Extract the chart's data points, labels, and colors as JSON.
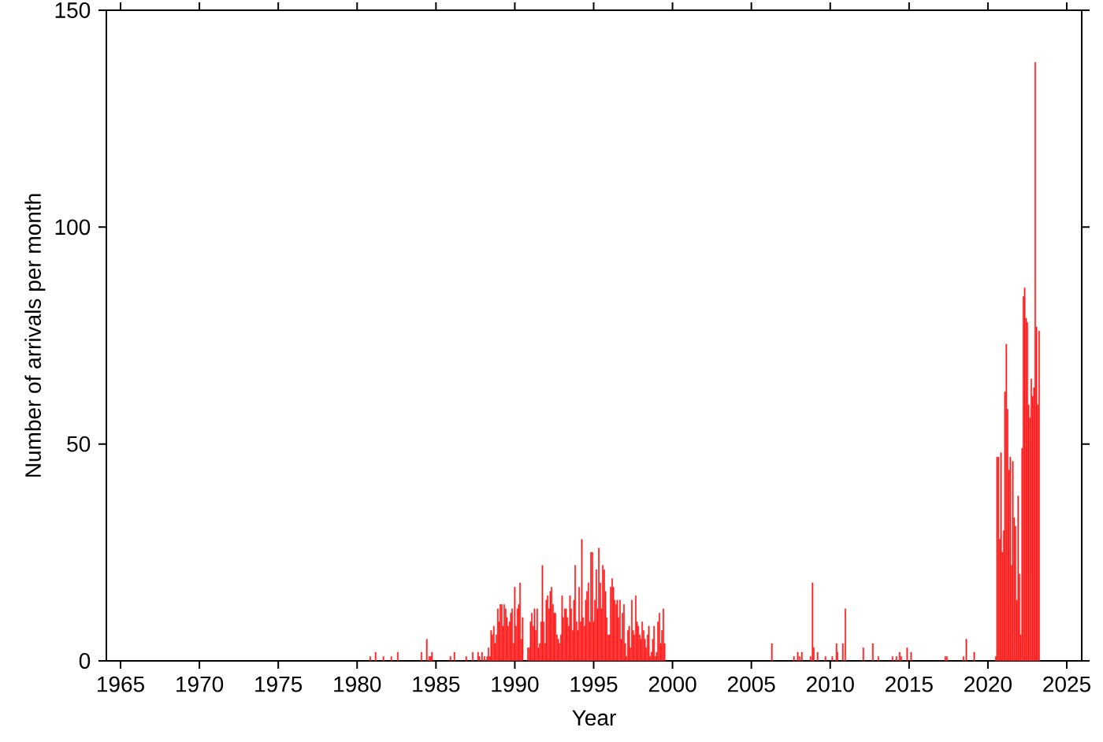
{
  "chart_data": {
    "type": "bar",
    "xlabel": "Year",
    "ylabel": "Number of arrivals per month",
    "xlim": [
      1964.1,
      2025.95
    ],
    "ylim": [
      0,
      150
    ],
    "xticks": [
      1965,
      1970,
      1975,
      1980,
      1985,
      1990,
      1995,
      2000,
      2005,
      2010,
      2015,
      2020,
      2025
    ],
    "yticks": [
      0,
      50,
      100,
      150
    ],
    "grid": false,
    "series": [
      {
        "color": "#ff1a1a",
        "x": [
          1980.83,
          1981.17,
          1981.67,
          1982.17,
          1982.58,
          1984.08,
          1984.42,
          1984.58,
          1984.67,
          1984.75,
          1985.92,
          1986.17,
          1986.92,
          1987.33,
          1987.67,
          1987.75,
          1987.92,
          1988.08,
          1988.25,
          1988.33,
          1988.42,
          1988.5,
          1988.58,
          1988.67,
          1988.75,
          1988.83,
          1988.92,
          1989.0,
          1989.08,
          1989.17,
          1989.25,
          1989.33,
          1989.42,
          1989.5,
          1989.58,
          1989.67,
          1989.75,
          1989.83,
          1989.92,
          1990.0,
          1990.08,
          1990.17,
          1990.25,
          1990.33,
          1990.42,
          1990.5,
          1990.83,
          1990.92,
          1991.0,
          1991.08,
          1991.17,
          1991.25,
          1991.33,
          1991.42,
          1991.5,
          1991.58,
          1991.67,
          1991.75,
          1991.83,
          1991.92,
          1992.0,
          1992.08,
          1992.17,
          1992.25,
          1992.33,
          1992.42,
          1992.5,
          1992.58,
          1992.67,
          1992.75,
          1992.83,
          1992.92,
          1993.0,
          1993.08,
          1993.17,
          1993.25,
          1993.33,
          1993.42,
          1993.5,
          1993.58,
          1993.67,
          1993.75,
          1993.83,
          1993.92,
          1994.0,
          1994.08,
          1994.17,
          1994.25,
          1994.33,
          1994.42,
          1994.5,
          1994.58,
          1994.67,
          1994.75,
          1994.83,
          1994.92,
          1995.0,
          1995.08,
          1995.17,
          1995.25,
          1995.33,
          1995.42,
          1995.5,
          1995.58,
          1995.67,
          1995.75,
          1995.83,
          1995.92,
          1996.0,
          1996.08,
          1996.17,
          1996.25,
          1996.33,
          1996.42,
          1996.5,
          1996.58,
          1996.67,
          1996.75,
          1996.83,
          1996.92,
          1997.0,
          1997.08,
          1997.17,
          1997.25,
          1997.33,
          1997.42,
          1997.5,
          1997.58,
          1997.67,
          1997.75,
          1997.83,
          1997.92,
          1998.0,
          1998.08,
          1998.17,
          1998.25,
          1998.33,
          1998.42,
          1998.5,
          1998.58,
          1998.67,
          1998.75,
          1998.83,
          1998.92,
          1999.0,
          1999.08,
          1999.17,
          1999.25,
          1999.33,
          1999.42,
          1999.5,
          2006.3,
          2007.7,
          2007.94,
          2008.06,
          2008.2,
          2008.75,
          2008.88,
          2008.96,
          2009.2,
          2009.7,
          2010.13,
          2010.4,
          2010.46,
          2010.8,
          2010.96,
          2012.1,
          2012.7,
          2013.05,
          2013.95,
          2014.2,
          2014.4,
          2014.5,
          2014.88,
          2015.13,
          2017.3,
          2017.4,
          2018.45,
          2018.63,
          2019.13,
          2020.5,
          2020.58,
          2020.67,
          2020.75,
          2020.83,
          2020.92,
          2021.0,
          2021.08,
          2021.17,
          2021.25,
          2021.33,
          2021.42,
          2021.5,
          2021.58,
          2021.67,
          2021.75,
          2021.83,
          2021.92,
          2022.0,
          2022.08,
          2022.17,
          2022.25,
          2022.33,
          2022.42,
          2022.5,
          2022.58,
          2022.67,
          2022.75,
          2022.83,
          2022.92,
          2023.0,
          2023.08,
          2023.17,
          2023.25
        ],
        "values": [
          1,
          2,
          1,
          1,
          2,
          2,
          5,
          1,
          1,
          2,
          1,
          2,
          1,
          2,
          2,
          1,
          2,
          1,
          1,
          3,
          1,
          7,
          6,
          8,
          4,
          6,
          12,
          9,
          13,
          13,
          8,
          13,
          12,
          10,
          8,
          9,
          11,
          12,
          4,
          17,
          8,
          12,
          13,
          18,
          5,
          10,
          3,
          3,
          9,
          11,
          8,
          12,
          7,
          12,
          3,
          4,
          9,
          22,
          9,
          4,
          14,
          15,
          12,
          16,
          17,
          13,
          11,
          11,
          6,
          5,
          4,
          6,
          15,
          10,
          12,
          12,
          10,
          8,
          15,
          12,
          7,
          14,
          22,
          9,
          7,
          17,
          9,
          28,
          10,
          8,
          14,
          16,
          18,
          9,
          25,
          25,
          9,
          14,
          21,
          12,
          26,
          18,
          12,
          22,
          21,
          16,
          10,
          6,
          6,
          17,
          19,
          17,
          14,
          13,
          14,
          10,
          14,
          5,
          11,
          13,
          4,
          1,
          7,
          8,
          3,
          14,
          7,
          6,
          15,
          9,
          8,
          6,
          5,
          9,
          7,
          5,
          3,
          6,
          8,
          1,
          2,
          5,
          8,
          1,
          2,
          9,
          11,
          4,
          7,
          12,
          4,
          4,
          1,
          2,
          1,
          2,
          1,
          18,
          3,
          2,
          1,
          1,
          4,
          2,
          4,
          12,
          3,
          4,
          1,
          1,
          1,
          2,
          1,
          3,
          2,
          1,
          1,
          1,
          5,
          2,
          1,
          47,
          47,
          28,
          48,
          25,
          30,
          62,
          73,
          58,
          44,
          47,
          22,
          46,
          33,
          31,
          14,
          38,
          20,
          6,
          49,
          84,
          86,
          79,
          78,
          59,
          56,
          65,
          61,
          63,
          138,
          77,
          59,
          76
        ]
      }
    ]
  }
}
